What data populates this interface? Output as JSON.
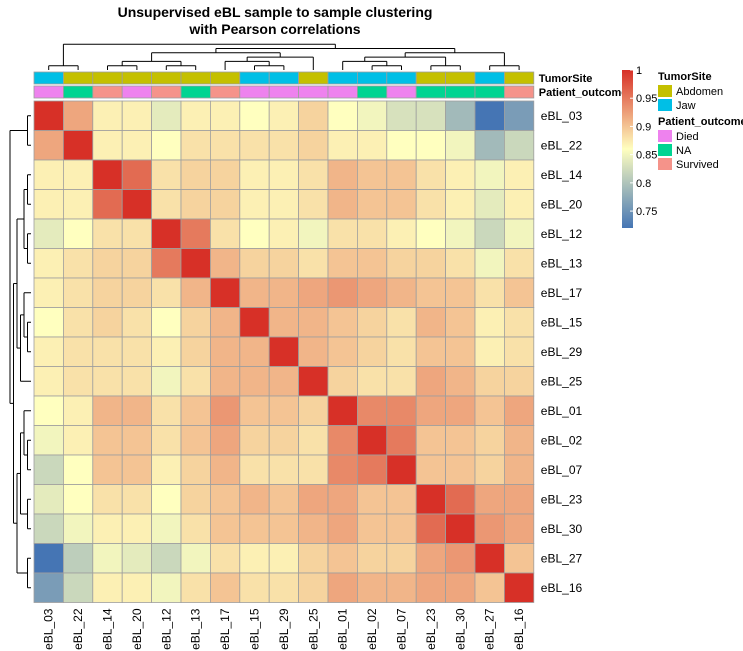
{
  "chart_data": {
    "type": "heatmap",
    "title_line1": "Unsupervised eBL sample to sample clustering",
    "title_line2": "with Pearson correlations",
    "samples": [
      "eBL_03",
      "eBL_22",
      "eBL_14",
      "eBL_20",
      "eBL_12",
      "eBL_13",
      "eBL_17",
      "eBL_15",
      "eBL_29",
      "eBL_25",
      "eBL_01",
      "eBL_02",
      "eBL_07",
      "eBL_23",
      "eBL_30",
      "eBL_27",
      "eBL_16"
    ],
    "matrix": [
      [
        1.0,
        0.92,
        0.87,
        0.87,
        0.84,
        0.87,
        0.87,
        0.86,
        0.87,
        0.89,
        0.86,
        0.85,
        0.83,
        0.83,
        0.79,
        0.72,
        0.76
      ],
      [
        0.92,
        1.0,
        0.87,
        0.87,
        0.86,
        0.88,
        0.88,
        0.88,
        0.88,
        0.89,
        0.87,
        0.87,
        0.86,
        0.86,
        0.85,
        0.79,
        0.82
      ],
      [
        0.87,
        0.87,
        1.0,
        0.96,
        0.88,
        0.89,
        0.89,
        0.87,
        0.87,
        0.88,
        0.91,
        0.9,
        0.9,
        0.88,
        0.87,
        0.85,
        0.87
      ],
      [
        0.87,
        0.87,
        0.96,
        1.0,
        0.88,
        0.89,
        0.89,
        0.87,
        0.87,
        0.88,
        0.91,
        0.9,
        0.9,
        0.88,
        0.87,
        0.84,
        0.87
      ],
      [
        0.84,
        0.86,
        0.88,
        0.88,
        1.0,
        0.95,
        0.88,
        0.86,
        0.87,
        0.85,
        0.88,
        0.88,
        0.87,
        0.86,
        0.85,
        0.82,
        0.85
      ],
      [
        0.87,
        0.88,
        0.89,
        0.89,
        0.95,
        1.0,
        0.91,
        0.89,
        0.89,
        0.88,
        0.9,
        0.9,
        0.89,
        0.89,
        0.88,
        0.85,
        0.88
      ],
      [
        0.87,
        0.88,
        0.89,
        0.89,
        0.88,
        0.91,
        1.0,
        0.91,
        0.91,
        0.92,
        0.93,
        0.92,
        0.91,
        0.9,
        0.9,
        0.88,
        0.9
      ],
      [
        0.86,
        0.88,
        0.89,
        0.88,
        0.86,
        0.89,
        0.91,
        1.0,
        0.91,
        0.91,
        0.9,
        0.89,
        0.88,
        0.91,
        0.9,
        0.87,
        0.88
      ],
      [
        0.87,
        0.88,
        0.88,
        0.88,
        0.87,
        0.89,
        0.91,
        0.91,
        1.0,
        0.91,
        0.9,
        0.89,
        0.88,
        0.9,
        0.9,
        0.87,
        0.88
      ],
      [
        0.87,
        0.88,
        0.88,
        0.88,
        0.85,
        0.88,
        0.91,
        0.91,
        0.91,
        1.0,
        0.89,
        0.88,
        0.88,
        0.92,
        0.91,
        0.89,
        0.89
      ],
      [
        0.86,
        0.87,
        0.91,
        0.91,
        0.88,
        0.9,
        0.93,
        0.9,
        0.9,
        0.89,
        1.0,
        0.94,
        0.94,
        0.92,
        0.92,
        0.9,
        0.92
      ],
      [
        0.85,
        0.87,
        0.9,
        0.9,
        0.88,
        0.9,
        0.92,
        0.89,
        0.89,
        0.88,
        0.94,
        1.0,
        0.95,
        0.9,
        0.9,
        0.89,
        0.91
      ],
      [
        0.82,
        0.86,
        0.9,
        0.9,
        0.87,
        0.89,
        0.91,
        0.88,
        0.88,
        0.88,
        0.94,
        0.95,
        1.0,
        0.9,
        0.9,
        0.89,
        0.91
      ],
      [
        0.84,
        0.86,
        0.88,
        0.88,
        0.86,
        0.89,
        0.9,
        0.91,
        0.9,
        0.92,
        0.92,
        0.9,
        0.9,
        1.0,
        0.96,
        0.92,
        0.92
      ],
      [
        0.82,
        0.85,
        0.87,
        0.87,
        0.85,
        0.88,
        0.9,
        0.9,
        0.9,
        0.91,
        0.92,
        0.9,
        0.9,
        0.96,
        1.0,
        0.93,
        0.92
      ],
      [
        0.72,
        0.81,
        0.85,
        0.84,
        0.82,
        0.85,
        0.88,
        0.87,
        0.87,
        0.89,
        0.9,
        0.89,
        0.89,
        0.92,
        0.93,
        1.0,
        0.9
      ],
      [
        0.76,
        0.82,
        0.87,
        0.87,
        0.85,
        0.88,
        0.9,
        0.88,
        0.88,
        0.89,
        0.92,
        0.91,
        0.91,
        0.92,
        0.92,
        0.9,
        1.0
      ]
    ],
    "annotations": {
      "TumorSite": [
        "Jaw",
        "Abdomen",
        "Abdomen",
        "Abdomen",
        "Abdomen",
        "Abdomen",
        "Abdomen",
        "Jaw",
        "Jaw",
        "Abdomen",
        "Jaw",
        "Jaw",
        "Jaw",
        "Abdomen",
        "Abdomen",
        "Jaw",
        "Abdomen"
      ],
      "Patient_outcome": [
        "Died",
        "NA",
        "Survived",
        "Died",
        "Survived",
        "NA",
        "Survived",
        "Died",
        "Died",
        "Died",
        "Died",
        "NA",
        "Died",
        "NA",
        "NA",
        "NA",
        "Survived"
      ]
    },
    "annotation_rows": [
      "TumorSite",
      "Patient_outcome"
    ],
    "legend": {
      "TumorSite": [
        {
          "label": "Abdomen",
          "color": "#c4c000"
        },
        {
          "label": "Jaw",
          "color": "#00bfe6"
        }
      ],
      "Patient_outcome": [
        {
          "label": "Died",
          "color": "#ee82ee"
        },
        {
          "label": "NA",
          "color": "#00d492"
        },
        {
          "label": "Survived",
          "color": "#f5938a"
        }
      ]
    },
    "colorbar": {
      "min": 0.72,
      "max": 1.0,
      "ticks": [
        "1",
        "0.95",
        "0.9",
        "0.85",
        "0.8",
        "0.75"
      ],
      "tick_values": [
        1.0,
        0.95,
        0.9,
        0.85,
        0.8,
        0.75
      ],
      "low_color": "#4575b4",
      "mid_color": "#ffffbf",
      "high_color": "#d73027"
    },
    "column_tree": [
      [
        [
          0,
          1
        ],
        [
          [
            [
              [
                2,
                3
              ],
              [
                4,
                5
              ]
            ],
            [
              [
                6,
                [
                  7,
                  8
                ]
              ],
              9
            ]
          ],
          [
            [
              [
                10,
                [
                  11,
                  12
                ]
              ],
              [
                13,
                14
              ]
            ],
            [
              15,
              16
            ]
          ]
        ]
      ]
    ],
    "row_tree": [
      [
        [
          0,
          1
        ],
        [
          [
            [
              [
                2,
                3
              ],
              [
                4,
                5
              ]
            ],
            [
              [
                6,
                [
                  7,
                  8
                ]
              ],
              9
            ]
          ],
          [
            [
              [
                10,
                [
                  11,
                  12
                ]
              ],
              [
                13,
                14
              ]
            ],
            [
              15,
              16
            ]
          ]
        ]
      ]
    ]
  }
}
